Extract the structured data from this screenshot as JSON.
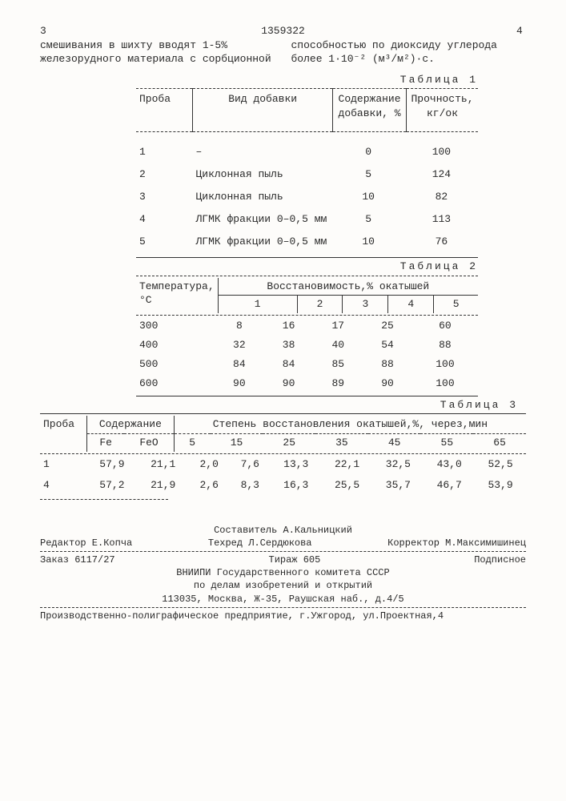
{
  "header": {
    "left_page": "3",
    "doc_no": "1359322",
    "right_page": "4"
  },
  "intro": {
    "left": "смешивания в шихту вводят 1-5% железорудного материала с сорбционной",
    "right": "способностью по диоксиду углерода более 1·10⁻² (м³/м²)·с."
  },
  "table1": {
    "caption": "Таблица 1",
    "headers": [
      "Проба",
      "Вид добавки",
      "Содержание добавки, %",
      "Прочность, кг/ок"
    ],
    "rows": [
      [
        "1",
        "–",
        "0",
        "100"
      ],
      [
        "2",
        "Циклонная пыль",
        "5",
        "124"
      ],
      [
        "3",
        "Циклонная пыль",
        "10",
        "82"
      ],
      [
        "4",
        "ЛГМК фракции 0–0,5 мм",
        "5",
        "113"
      ],
      [
        "5",
        "ЛГМК фракции 0–0,5 мм",
        "10",
        "76"
      ]
    ]
  },
  "table2": {
    "caption": "Таблица 2",
    "header_top": "Восстановимость,% окатышей",
    "col1": "Температура, °С",
    "subheaders": [
      "1",
      "2",
      "3",
      "4",
      "5"
    ],
    "rows": [
      [
        "300",
        "8",
        "16",
        "17",
        "25",
        "60"
      ],
      [
        "400",
        "32",
        "38",
        "40",
        "54",
        "88"
      ],
      [
        "500",
        "84",
        "84",
        "85",
        "88",
        "100"
      ],
      [
        "600",
        "90",
        "90",
        "89",
        "90",
        "100"
      ]
    ]
  },
  "table3": {
    "caption": "Таблица 3",
    "col_proba": "Проба",
    "col_sod": "Содержание",
    "col_step": "Степень восстановления окатышей,%, через,мин",
    "sub": [
      "Fe",
      "FeO",
      "5",
      "15",
      "25",
      "35",
      "45",
      "55",
      "65"
    ],
    "rows": [
      [
        "1",
        "57,9",
        "21,1",
        "2,0",
        "7,6",
        "13,3",
        "22,1",
        "32,5",
        "43,0",
        "52,5"
      ],
      [
        "4",
        "57,2",
        "21,9",
        "2,6",
        "8,3",
        "16,3",
        "25,5",
        "35,7",
        "46,7",
        "53,9"
      ]
    ]
  },
  "footer": {
    "compiler": "Составитель А.Кальницкий",
    "editor": "Редактор Е.Копча",
    "tech": "Техред Л.Сердюкова",
    "corrector": "Корректор М.Максимишинец",
    "order": "Заказ 6117/27",
    "tirage": "Тираж 605",
    "subscr": "Подписное",
    "org1": "ВНИИПИ Государственного комитета СССР",
    "org2": "по делам изобретений и открытий",
    "addr": "113035, Москва, Ж-35, Раушская наб., д.4/5",
    "print": "Производственно-полиграфическое предприятие, г.Ужгород, ул.Проектная,4"
  }
}
